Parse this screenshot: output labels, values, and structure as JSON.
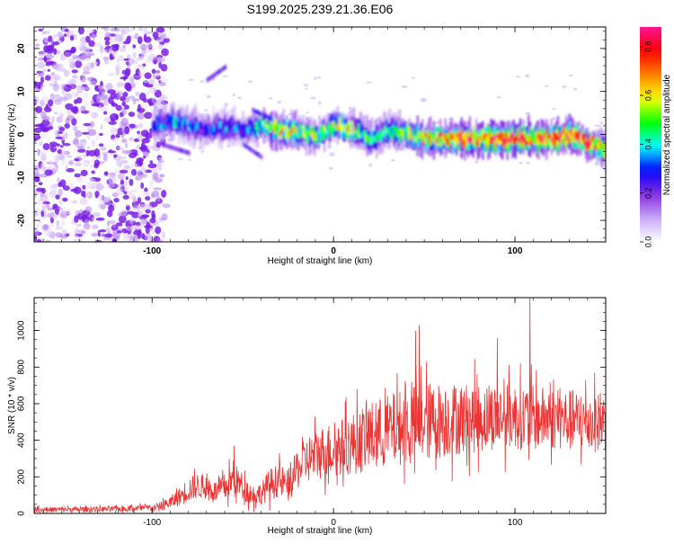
{
  "page": {
    "title": "S199.2025.239.21.36.E06"
  },
  "colorbar": {
    "label": "Normalized spectral amplitude",
    "ticks": [
      "0.0",
      "0.2",
      "0.4",
      "0.6",
      "0.8"
    ],
    "tick_values": [
      0.0,
      0.2,
      0.4,
      0.6,
      0.8
    ],
    "range": [
      0,
      0.88
    ],
    "colors": [
      "#ffffff",
      "#c8a8f8",
      "#8a2be2",
      "#0000ff",
      "#00ffff",
      "#00ff00",
      "#ffff00",
      "#ff8000",
      "#ff0000",
      "#ff1493"
    ]
  },
  "chart_data": [
    {
      "type": "heatmap",
      "title": "S199.2025.239.21.36.E06",
      "xlabel": "Height of straight line (km)",
      "ylabel": "Frequency (Hz)",
      "xlim": [
        -165,
        150
      ],
      "ylim": [
        -25,
        25
      ],
      "x_ticks": [
        -100,
        0,
        100
      ],
      "x_tick_labels": [
        "-100",
        "0",
        "100"
      ],
      "y_ticks": [
        -20,
        -10,
        0,
        10,
        20
      ],
      "y_tick_labels": [
        "-20",
        "-10",
        "0",
        "10",
        "20"
      ],
      "signal_band": {
        "x": [
          -100,
          -90,
          -80,
          -70,
          -60,
          -50,
          -40,
          -30,
          -20,
          -10,
          0,
          10,
          20,
          30,
          40,
          50,
          60,
          70,
          80,
          90,
          100,
          110,
          120,
          130,
          140,
          148
        ],
        "center_hz": [
          2,
          3,
          2,
          1,
          2,
          1,
          2,
          1,
          0.5,
          -0.5,
          2,
          1,
          -1,
          1,
          0,
          -1,
          -1,
          -1,
          -1,
          -1,
          -1,
          -1,
          -1,
          0,
          -2,
          -3
        ],
        "peak_amplitude": [
          0.3,
          0.4,
          0.35,
          0.3,
          0.35,
          0.3,
          0.5,
          0.7,
          0.6,
          0.5,
          0.55,
          0.6,
          0.45,
          0.5,
          0.55,
          0.7,
          0.75,
          0.8,
          0.75,
          0.8,
          0.85,
          0.75,
          0.8,
          0.85,
          0.8,
          0.6
        ]
      },
      "noise_region": {
        "x_from": -165,
        "x_to": -100,
        "amplitude": 0.15
      }
    },
    {
      "type": "line",
      "xlabel": "Height of straight line (km)",
      "ylabel": "SNR (10 * v/v)",
      "xlim": [
        -165,
        150
      ],
      "ylim": [
        0,
        1180
      ],
      "x_ticks": [
        -100,
        0,
        100
      ],
      "x_tick_labels": [
        "-100",
        "0",
        "100"
      ],
      "y_ticks": [
        0,
        200,
        400,
        600,
        800,
        1000
      ],
      "y_tick_labels": [
        "0",
        "200",
        "400",
        "600",
        "800",
        "1000"
      ],
      "color": "#ee3333",
      "envelope": {
        "x": [
          -165,
          -140,
          -120,
          -100,
          -95,
          -90,
          -85,
          -80,
          -75,
          -70,
          -65,
          -60,
          -55,
          -50,
          -45,
          -40,
          -35,
          -30,
          -25,
          -20,
          -15,
          -10,
          -5,
          0,
          10,
          20,
          30,
          40,
          50,
          60,
          70,
          80,
          90,
          100,
          110,
          120,
          130,
          140,
          150
        ],
        "mean": [
          20,
          22,
          25,
          30,
          40,
          60,
          90,
          130,
          150,
          140,
          120,
          140,
          190,
          150,
          100,
          110,
          160,
          180,
          150,
          240,
          290,
          320,
          340,
          350,
          380,
          420,
          450,
          480,
          500,
          510,
          520,
          520,
          530,
          530,
          520,
          520,
          510,
          500,
          500
        ],
        "spread": [
          15,
          15,
          15,
          20,
          25,
          35,
          50,
          70,
          70,
          60,
          60,
          80,
          90,
          70,
          60,
          60,
          90,
          90,
          90,
          110,
          130,
          140,
          150,
          150,
          170,
          190,
          200,
          210,
          220,
          210,
          200,
          190,
          180,
          180,
          180,
          170,
          170,
          170,
          160
        ]
      },
      "spikes": [
        {
          "x": 47,
          "y": 1030
        },
        {
          "x": 108,
          "y": 1180
        },
        {
          "x": 45,
          "y": 1000
        },
        {
          "x": 90,
          "y": 960
        },
        {
          "x": -55,
          "y": 370
        }
      ]
    }
  ]
}
